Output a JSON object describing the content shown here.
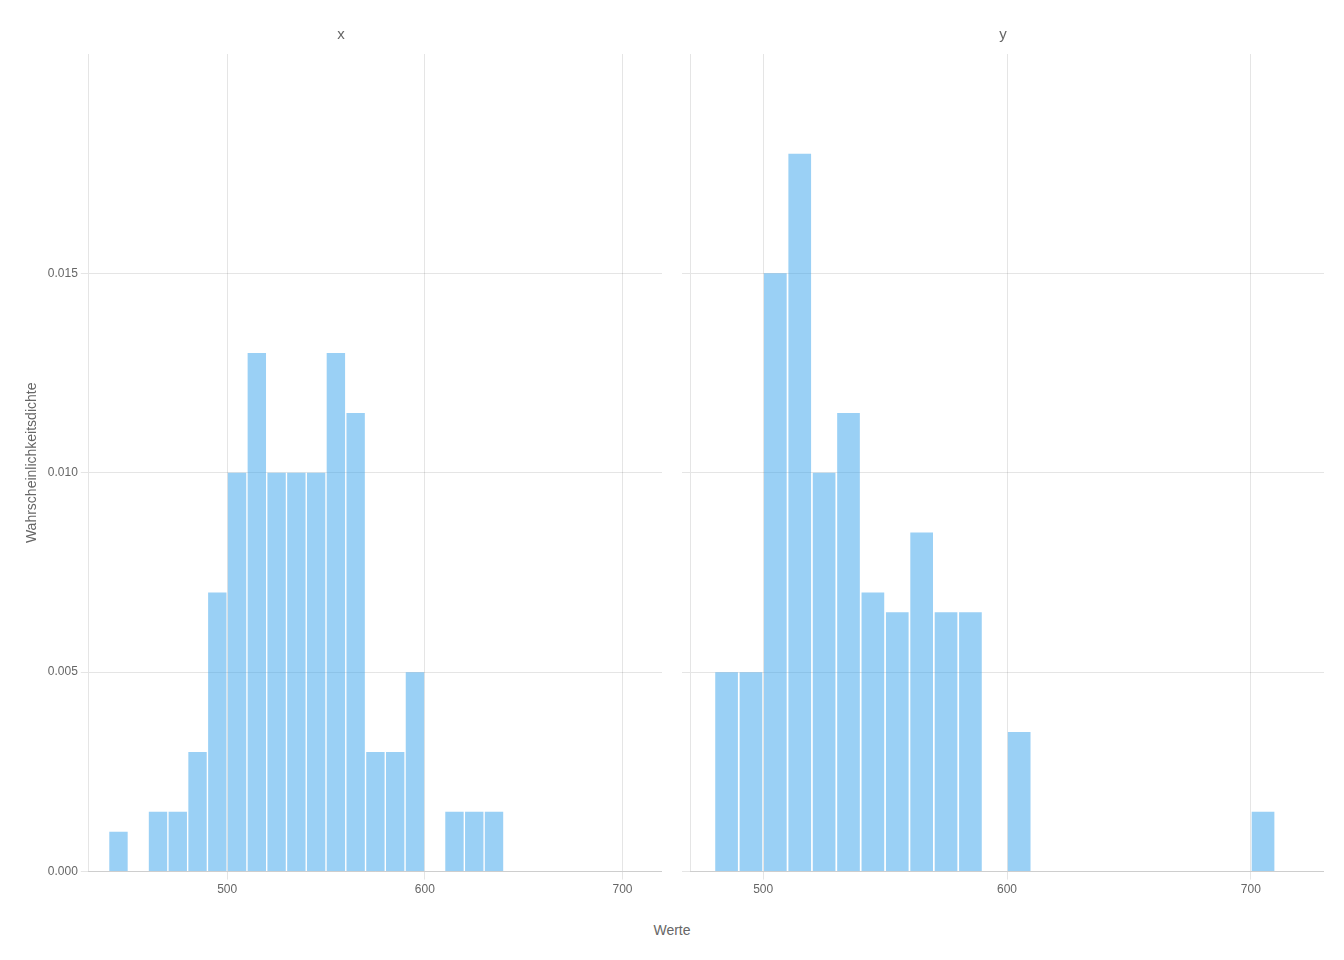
{
  "chart_data": [
    {
      "type": "bar",
      "title": "x",
      "ylabel": "Wahrscheinlichkeitsdichte",
      "xlabel": "Werte",
      "x": [
        445,
        455,
        465,
        475,
        485,
        495,
        505,
        515,
        525,
        535,
        545,
        555,
        565,
        575,
        585,
        595,
        605,
        615,
        625,
        635
      ],
      "values": [
        0.001,
        0.0,
        0.0015,
        0.0015,
        0.003,
        0.007,
        0.01,
        0.013,
        0.01,
        0.01,
        0.01,
        0.013,
        0.0115,
        0.003,
        0.003,
        0.005,
        0.0,
        0.0015,
        0.0015,
        0.0015
      ],
      "xlim": [
        430,
        720
      ],
      "xticks": [
        500,
        600,
        700
      ],
      "ylim": [
        0,
        0.0205
      ],
      "yticks": [
        {
          "value": 0,
          "label": "0.000"
        },
        {
          "value": 0.005,
          "label": "0.005"
        },
        {
          "value": 0.01,
          "label": "0.010"
        },
        {
          "value": 0.015,
          "label": "0.015"
        }
      ],
      "grid": true
    },
    {
      "type": "bar",
      "title": "y",
      "x": [
        485,
        495,
        505,
        515,
        525,
        535,
        545,
        555,
        565,
        575,
        585,
        595,
        605,
        615,
        625,
        705,
        715
      ],
      "values": [
        0.005,
        0.005,
        0.015,
        0.018,
        0.01,
        0.0115,
        0.007,
        0.0065,
        0.0085,
        0.0065,
        0.0065,
        0.0,
        0.0035,
        0.0,
        0.0,
        0.0015,
        0.0
      ],
      "xlim": [
        470,
        730
      ],
      "xticks": [
        500,
        600,
        700
      ],
      "ylim": [
        0,
        0.0205
      ],
      "yticks": [
        0,
        0.005,
        0.01,
        0.015
      ],
      "grid": true,
      "tick_labels": "x"
    }
  ]
}
